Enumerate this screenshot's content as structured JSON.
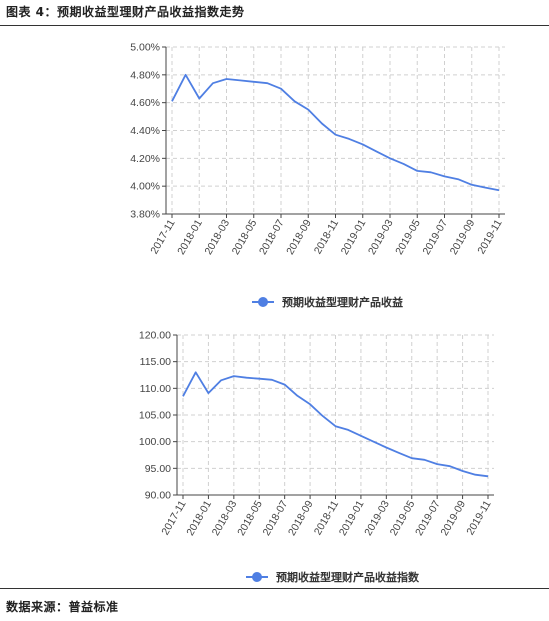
{
  "figure_title": "图表 4：预期收益型理财产品收益指数走势",
  "source": "数据来源：普益标准",
  "colors": {
    "line": "#4f7fe3",
    "axis": "#444444",
    "grid": "#d0d0d0"
  },
  "chart_data": [
    {
      "type": "line",
      "x": [
        "2017-11",
        "2017-12",
        "2018-01",
        "2018-02",
        "2018-03",
        "2018-04",
        "2018-05",
        "2018-06",
        "2018-07",
        "2018-08",
        "2018-09",
        "2018-10",
        "2018-11",
        "2018-12",
        "2019-01",
        "2019-02",
        "2019-03",
        "2019-04",
        "2019-05",
        "2019-06",
        "2019-07",
        "2019-08",
        "2019-09",
        "2019-10",
        "2019-11"
      ],
      "x_tick_labels": [
        "2017-11",
        "2018-01",
        "2018-03",
        "2018-05",
        "2018-07",
        "2018-09",
        "2018-11",
        "2019-01",
        "2019-03",
        "2019-05",
        "2019-07",
        "2019-09",
        "2019-11"
      ],
      "series": [
        {
          "name": "预期收益型理财产品收益",
          "values": [
            4.61,
            4.8,
            4.63,
            4.74,
            4.77,
            4.76,
            4.75,
            4.74,
            4.7,
            4.61,
            4.55,
            4.45,
            4.37,
            4.34,
            4.3,
            4.25,
            4.2,
            4.16,
            4.11,
            4.1,
            4.07,
            4.05,
            4.01,
            3.99,
            3.97
          ]
        }
      ],
      "y_tick_labels": [
        "3.80%",
        "4.00%",
        "4.20%",
        "4.40%",
        "4.60%",
        "4.80%",
        "5.00%"
      ],
      "ylim": [
        3.8,
        5.0
      ],
      "grid": true,
      "legend": "bottom-center"
    },
    {
      "type": "line",
      "x": [
        "2017-11",
        "2017-12",
        "2018-01",
        "2018-02",
        "2018-03",
        "2018-04",
        "2018-05",
        "2018-06",
        "2018-07",
        "2018-08",
        "2018-09",
        "2018-10",
        "2018-11",
        "2018-12",
        "2019-01",
        "2019-02",
        "2019-03",
        "2019-04",
        "2019-05",
        "2019-06",
        "2019-07",
        "2019-08",
        "2019-09",
        "2019-10",
        "2019-11"
      ],
      "x_tick_labels": [
        "2017-11",
        "2018-01",
        "2018-03",
        "2018-05",
        "2018-07",
        "2018-09",
        "2018-11",
        "2019-01",
        "2019-03",
        "2019-05",
        "2019-07",
        "2019-09",
        "2019-11"
      ],
      "series": [
        {
          "name": "预期收益型理财产品收益指数",
          "values": [
            108.5,
            113.0,
            109.1,
            111.5,
            112.3,
            112.0,
            111.8,
            111.6,
            110.7,
            108.6,
            107.0,
            104.8,
            102.9,
            102.2,
            101.1,
            100.0,
            98.9,
            97.9,
            96.9,
            96.6,
            95.8,
            95.4,
            94.5,
            93.8,
            93.5
          ]
        }
      ],
      "y_tick_labels": [
        "90.00",
        "95.00",
        "100.00",
        "105.00",
        "110.00",
        "115.00",
        "120.00"
      ],
      "ylim": [
        90,
        120
      ],
      "grid": true,
      "legend": "bottom-center"
    }
  ]
}
